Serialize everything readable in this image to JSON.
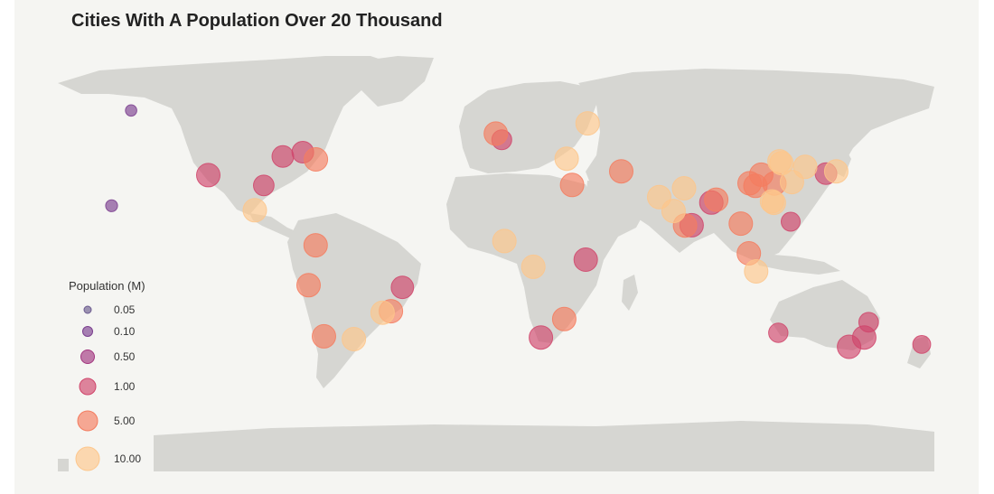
{
  "title": "Cities With A Population Over 20 Thousand",
  "legend": {
    "title": "Population (M)",
    "items": [
      {
        "label": "0.05",
        "value": 0.05,
        "color": "#6a5a8e"
      },
      {
        "label": "0.10",
        "value": 0.1,
        "color": "#7b3f8f"
      },
      {
        "label": "0.50",
        "value": 0.5,
        "color": "#a2367f"
      },
      {
        "label": "1.00",
        "value": 1.0,
        "color": "#d0456b"
      },
      {
        "label": "5.00",
        "value": 5.0,
        "color": "#f47c5f"
      },
      {
        "label": "10.00",
        "value": 10.0,
        "color": "#fdc68b"
      }
    ]
  },
  "colors": {
    "land": "#d6d6d2",
    "background": "#f5f5f2"
  },
  "chart_data": {
    "type": "scatter",
    "title": "Cities With A Population Over 20 Thousand",
    "legend_title": "Population (M)",
    "legend_position": "bottom-left",
    "size_scale": [
      0.05,
      0.1,
      0.5,
      1.0,
      5.0,
      10.0
    ],
    "points": [
      {
        "lon": -74.0,
        "lat": 40.7,
        "pop": 8.4
      },
      {
        "lon": -118.2,
        "lat": 34.1,
        "pop": 3.9
      },
      {
        "lon": -99.1,
        "lat": 19.4,
        "pop": 12.0
      },
      {
        "lon": -87.6,
        "lat": 41.9,
        "pop": 2.7
      },
      {
        "lon": -79.4,
        "lat": 43.7,
        "pop": 2.7
      },
      {
        "lon": -95.4,
        "lat": 29.8,
        "pop": 2.3
      },
      {
        "lon": -46.6,
        "lat": -23.5,
        "pop": 12.3
      },
      {
        "lon": -43.2,
        "lat": -22.9,
        "pop": 6.7
      },
      {
        "lon": -58.4,
        "lat": -34.6,
        "pop": 10.0
      },
      {
        "lon": -77.0,
        "lat": -12.0,
        "pop": 8.9
      },
      {
        "lon": -74.1,
        "lat": 4.7,
        "pop": 7.4
      },
      {
        "lon": -70.7,
        "lat": -33.4,
        "pop": 5.6
      },
      {
        "lon": -38.5,
        "lat": -12.9,
        "pop": 2.9
      },
      {
        "lon": -0.1,
        "lat": 51.5,
        "pop": 8.9
      },
      {
        "lon": 37.6,
        "lat": 55.8,
        "pop": 12.5
      },
      {
        "lon": 2.35,
        "lat": 48.9,
        "pop": 2.1
      },
      {
        "lon": 28.97,
        "lat": 41.0,
        "pop": 15.0
      },
      {
        "lon": 31.2,
        "lat": 30.0,
        "pop": 9.5
      },
      {
        "lon": 3.4,
        "lat": 6.5,
        "pop": 13.0
      },
      {
        "lon": 15.3,
        "lat": -4.3,
        "pop": 11.0
      },
      {
        "lon": 28.0,
        "lat": -26.2,
        "pop": 5.6
      },
      {
        "lon": 18.4,
        "lat": -33.9,
        "pop": 4.0
      },
      {
        "lon": 36.8,
        "lat": -1.3,
        "pop": 4.4
      },
      {
        "lon": 51.4,
        "lat": 35.7,
        "pop": 8.7
      },
      {
        "lon": 67.0,
        "lat": 24.9,
        "pop": 14.9
      },
      {
        "lon": 72.9,
        "lat": 19.1,
        "pop": 12.4
      },
      {
        "lon": 77.2,
        "lat": 28.6,
        "pop": 11.0
      },
      {
        "lon": 88.4,
        "lat": 22.6,
        "pop": 4.5
      },
      {
        "lon": 90.4,
        "lat": 23.8,
        "pop": 8.9
      },
      {
        "lon": 77.6,
        "lat": 13.0,
        "pop": 8.4
      },
      {
        "lon": 80.3,
        "lat": 13.1,
        "pop": 4.6
      },
      {
        "lon": 100.5,
        "lat": 13.8,
        "pop": 8.3
      },
      {
        "lon": 106.8,
        "lat": -6.2,
        "pop": 10.6
      },
      {
        "lon": 103.8,
        "lat": 1.35,
        "pop": 5.6
      },
      {
        "lon": 121.0,
        "lat": 14.6,
        "pop": 1.8
      },
      {
        "lon": 116.4,
        "lat": 39.9,
        "pop": 21.5
      },
      {
        "lon": 121.5,
        "lat": 31.2,
        "pop": 24.2
      },
      {
        "lon": 113.3,
        "lat": 23.1,
        "pop": 13.0
      },
      {
        "lon": 114.1,
        "lat": 22.5,
        "pop": 12.5
      },
      {
        "lon": 106.5,
        "lat": 29.6,
        "pop": 8.0
      },
      {
        "lon": 104.1,
        "lat": 30.7,
        "pop": 7.4
      },
      {
        "lon": 117.2,
        "lat": 39.1,
        "pop": 11.0
      },
      {
        "lon": 114.3,
        "lat": 30.6,
        "pop": 8.4
      },
      {
        "lon": 108.9,
        "lat": 34.3,
        "pop": 7.0
      },
      {
        "lon": 126.98,
        "lat": 37.57,
        "pop": 10.0
      },
      {
        "lon": 139.7,
        "lat": 35.7,
        "pop": 13.5
      },
      {
        "lon": 135.5,
        "lat": 34.7,
        "pop": 2.7
      },
      {
        "lon": 151.2,
        "lat": -33.9,
        "pop": 4.6
      },
      {
        "lon": 144.96,
        "lat": -37.8,
        "pop": 4.5
      },
      {
        "lon": 153.0,
        "lat": -27.5,
        "pop": 2.0
      },
      {
        "lon": 115.9,
        "lat": -31.95,
        "pop": 1.9
      },
      {
        "lon": 174.8,
        "lat": -36.8,
        "pop": 1.5
      },
      {
        "lon": -157.9,
        "lat": 21.3,
        "pop": 0.35
      },
      {
        "lon": -149.9,
        "lat": 61.2,
        "pop": 0.29
      }
    ]
  }
}
